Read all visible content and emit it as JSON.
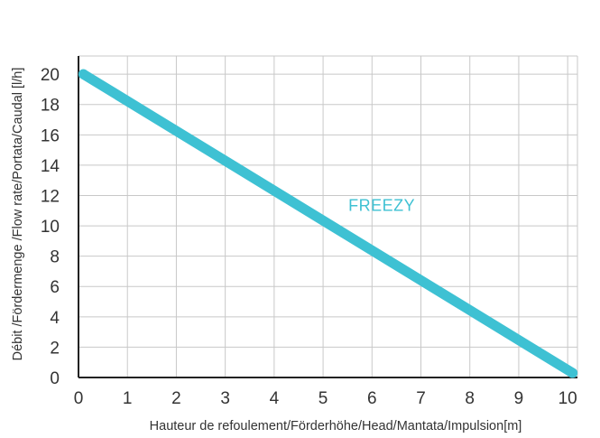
{
  "chart_data": {
    "type": "line",
    "title": "",
    "xlabel": "Hauteur de refoulement/Förderhöhe/Head/Mantata/Impulsion[m]",
    "ylabel": "Débit /Fördermenge /Flow rate/Portata/Caudal [l/h]",
    "xlim": [
      0,
      10.2
    ],
    "ylim": [
      0,
      21.2
    ],
    "xticks": [
      "0",
      "1",
      "2",
      "3",
      "4",
      "5",
      "6",
      "7",
      "8",
      "9",
      "10"
    ],
    "yticks": [
      "0",
      "2",
      "4",
      "6",
      "8",
      "10",
      "12",
      "14",
      "16",
      "18",
      "20"
    ],
    "grid": true,
    "series": [
      {
        "name": "FREEZY",
        "color": "#3ec1d3",
        "x": [
          0.1,
          10.1
        ],
        "y": [
          20,
          0.3
        ]
      }
    ]
  }
}
